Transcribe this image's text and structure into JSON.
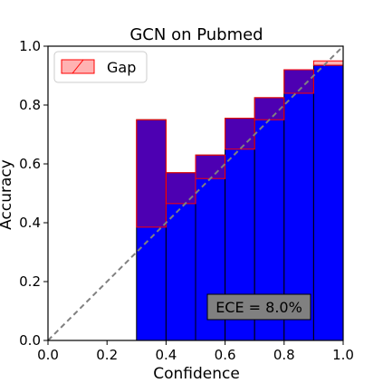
{
  "chart_data": {
    "type": "bar",
    "title": "GCN on Pubmed",
    "xlabel": "Confidence",
    "ylabel": "Accuracy",
    "xlim": [
      0.0,
      1.0
    ],
    "ylim": [
      0.0,
      1.0
    ],
    "x_ticks": [
      "0.0",
      "0.2",
      "0.4",
      "0.6",
      "0.8",
      "1.0"
    ],
    "y_ticks": [
      "0.0",
      "0.2",
      "0.4",
      "0.6",
      "0.8",
      "1.0"
    ],
    "bin_edges": [
      0.0,
      0.1,
      0.2,
      0.3,
      0.4,
      0.5,
      0.6,
      0.7,
      0.8,
      0.9,
      1.0
    ],
    "series": [
      {
        "role": "accuracy",
        "values": [
          0.0,
          0.0,
          0.0,
          0.75,
          0.57,
          0.63,
          0.755,
          0.825,
          0.92,
          0.935
        ]
      },
      {
        "name": "Gap",
        "role": "gap",
        "values": [
          0.0,
          0.0,
          0.0,
          0.385,
          0.465,
          0.55,
          0.65,
          0.75,
          0.84,
          0.95
        ]
      }
    ],
    "diagonal": "y = x (dashed)",
    "legend": {
      "position": "upper-left",
      "entries": [
        "Gap"
      ]
    },
    "annotation": "ECE = 8.0%",
    "colors": {
      "accuracy_bar": "#0000ff",
      "gap_fill": "#ff0000",
      "gap_edge": "#ff0000",
      "diagonal": "#808080",
      "annotation_box": "#808080"
    }
  }
}
